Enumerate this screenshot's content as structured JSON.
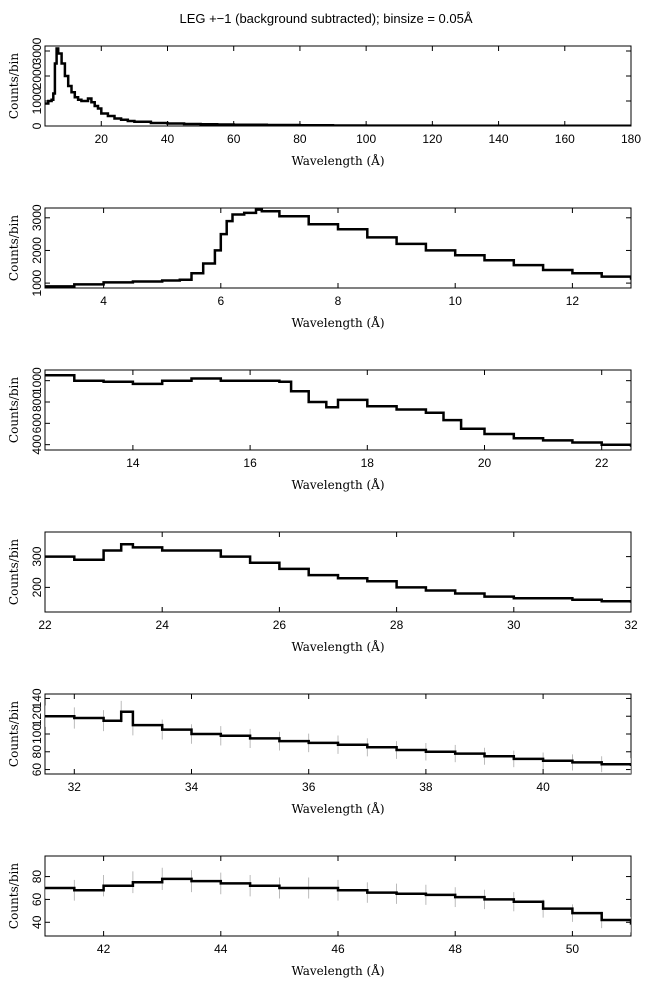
{
  "chart_data": {
    "type": "line",
    "title": "LEG +−1 (background subtracted); binsize = 0.05Å",
    "panels": [
      {
        "xlabel": "Wavelength (Å)",
        "ylabel": "Counts/bin",
        "xlim": [
          3,
          180
        ],
        "ylim": [
          0,
          3200
        ],
        "xticks": [
          20,
          40,
          60,
          80,
          100,
          120,
          140,
          160,
          180
        ],
        "yticks": [
          0,
          1000,
          2000,
          3000
        ],
        "ytick_labels": [
          "0",
          "1000",
          "2000",
          "3000"
        ],
        "error_bars": false,
        "x": [
          3,
          4,
          5,
          5.5,
          6,
          6.5,
          7,
          8,
          9,
          10,
          11,
          12,
          13,
          14,
          15,
          16,
          17,
          18,
          19,
          20,
          22,
          24,
          26,
          28,
          30,
          35,
          40,
          45,
          50,
          55,
          60,
          70,
          80,
          90,
          100,
          120,
          140,
          160,
          180
        ],
        "y": [
          900,
          1000,
          1050,
          1300,
          2500,
          3100,
          2900,
          2500,
          2000,
          1600,
          1350,
          1150,
          1050,
          1000,
          1000,
          1100,
          950,
          800,
          700,
          500,
          400,
          300,
          250,
          200,
          170,
          120,
          100,
          80,
          70,
          60,
          50,
          40,
          30,
          20,
          15,
          10,
          10,
          10,
          10
        ]
      },
      {
        "xlabel": "Wavelength (Å)",
        "ylabel": "Counts/bin",
        "xlim": [
          3,
          13
        ],
        "ylim": [
          850,
          3300
        ],
        "xticks": [
          4,
          6,
          8,
          10,
          12
        ],
        "yticks": [
          1000,
          2000,
          3000
        ],
        "ytick_labels": [
          "1000",
          "2000",
          "3000"
        ],
        "error_bars": false,
        "x": [
          3,
          3.5,
          4,
          4.5,
          5,
          5.3,
          5.5,
          5.7,
          5.9,
          6.0,
          6.1,
          6.2,
          6.4,
          6.6,
          6.7,
          7,
          7.5,
          8,
          8.5,
          9,
          9.5,
          10,
          10.5,
          11,
          11.5,
          12,
          12.5,
          13
        ],
        "y": [
          900,
          960,
          1020,
          1050,
          1080,
          1100,
          1300,
          1600,
          2000,
          2500,
          2900,
          3100,
          3150,
          3250,
          3200,
          3050,
          2800,
          2650,
          2400,
          2200,
          2000,
          1850,
          1700,
          1550,
          1400,
          1300,
          1200,
          1100
        ]
      },
      {
        "xlabel": "Wavelength (Å)",
        "ylabel": "Counts/bin",
        "xlim": [
          12.5,
          22.5
        ],
        "ylim": [
          350,
          1100
        ],
        "xticks": [
          14,
          16,
          18,
          20,
          22
        ],
        "yticks": [
          400,
          600,
          800,
          1000
        ],
        "ytick_labels": [
          "400",
          "600",
          "800",
          "1000"
        ],
        "error_bars": false,
        "x": [
          12.5,
          13,
          13.5,
          14,
          14.5,
          15,
          15.5,
          16,
          16.5,
          16.7,
          17,
          17.3,
          17.5,
          18,
          18.5,
          19,
          19.3,
          19.6,
          20,
          20.5,
          21,
          21.5,
          22,
          22.5
        ],
        "y": [
          1050,
          1000,
          990,
          970,
          1000,
          1020,
          1000,
          1000,
          990,
          900,
          800,
          750,
          820,
          760,
          730,
          700,
          630,
          550,
          500,
          460,
          440,
          420,
          400,
          380
        ]
      },
      {
        "xlabel": "Wavelength (Å)",
        "ylabel": "Counts/bin",
        "xlim": [
          22,
          32
        ],
        "ylim": [
          120,
          380
        ],
        "xticks": [
          22,
          24,
          26,
          28,
          30,
          32
        ],
        "yticks": [
          200,
          300
        ],
        "ytick_labels": [
          "200",
          "300"
        ],
        "error_bars": false,
        "x": [
          22,
          22.5,
          23,
          23.3,
          23.5,
          24,
          24.5,
          25,
          25.5,
          26,
          26.5,
          27,
          27.5,
          28,
          28.5,
          29,
          29.5,
          30,
          30.5,
          31,
          31.5,
          32
        ],
        "y": [
          300,
          290,
          320,
          340,
          330,
          320,
          320,
          300,
          280,
          260,
          240,
          230,
          220,
          200,
          190,
          180,
          170,
          165,
          165,
          160,
          155,
          150
        ]
      },
      {
        "xlabel": "Wavelength (Å)",
        "ylabel": "Counts/bin",
        "xlim": [
          31.5,
          41.5
        ],
        "ylim": [
          55,
          145
        ],
        "xticks": [
          32,
          34,
          36,
          38,
          40
        ],
        "yticks": [
          60,
          80,
          100,
          120,
          140
        ],
        "ytick_labels": [
          "60",
          "80",
          "100",
          "120",
          "140"
        ],
        "error_bars": true,
        "x": [
          31.5,
          32,
          32.5,
          32.8,
          33,
          33.5,
          34,
          34.5,
          35,
          35.5,
          36,
          36.5,
          37,
          37.5,
          38,
          38.5,
          39,
          39.5,
          40,
          40.5,
          41,
          41.5
        ],
        "y": [
          120,
          118,
          115,
          125,
          110,
          105,
          100,
          98,
          95,
          92,
          90,
          88,
          85,
          82,
          80,
          78,
          75,
          72,
          70,
          68,
          66,
          64
        ]
      },
      {
        "xlabel": "Wavelength (Å)",
        "ylabel": "Counts/bin",
        "xlim": [
          41,
          51
        ],
        "ylim": [
          28,
          98
        ],
        "xticks": [
          42,
          44,
          46,
          48,
          50
        ],
        "yticks": [
          40,
          60,
          80
        ],
        "ytick_labels": [
          "40",
          "60",
          "80"
        ],
        "error_bars": true,
        "x": [
          41,
          41.5,
          42,
          42.5,
          43,
          43.5,
          44,
          44.5,
          45,
          45.5,
          46,
          46.5,
          47,
          47.5,
          48,
          48.5,
          49,
          49.5,
          50,
          50.5,
          51
        ],
        "y": [
          70,
          68,
          72,
          75,
          78,
          76,
          74,
          72,
          70,
          70,
          68,
          66,
          65,
          64,
          62,
          60,
          58,
          52,
          48,
          42,
          38
        ]
      }
    ]
  }
}
